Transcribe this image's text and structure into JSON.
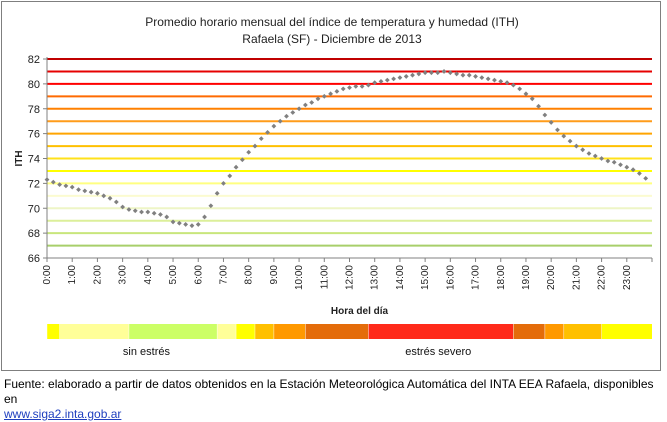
{
  "chart_data": {
    "type": "scatter",
    "title": "Promedio horario mensual del índice de temperatura y humedad (ITH)",
    "subtitle": "Rafaela (SF) - Diciembre de 2013",
    "xlabel": "Hora del día",
    "ylabel": "ITH",
    "ylim": [
      66,
      82
    ],
    "yticks": [
      "66",
      "68",
      "70",
      "72",
      "74",
      "76",
      "78",
      "80",
      "82"
    ],
    "xtick_labels": [
      "0:00",
      "1:00",
      "2:00",
      "3:00",
      "4:00",
      "5:00",
      "6:00",
      "7:00",
      "8:00",
      "9:00",
      "10:00",
      "11:00",
      "12:00",
      "13:00",
      "14:00",
      "15:00",
      "16:00",
      "17:00",
      "18:00",
      "19:00",
      "20:00",
      "21:00",
      "22:00",
      "23:00"
    ],
    "x_range_hours": [
      0,
      24
    ],
    "series_color": "#808080",
    "x": [
      0,
      0.25,
      0.5,
      0.75,
      1,
      1.25,
      1.5,
      1.75,
      2,
      2.25,
      2.5,
      2.75,
      3,
      3.25,
      3.5,
      3.75,
      4,
      4.25,
      4.5,
      4.75,
      5,
      5.25,
      5.5,
      5.75,
      6,
      6.25,
      6.5,
      6.75,
      7,
      7.25,
      7.5,
      7.75,
      8,
      8.25,
      8.5,
      8.75,
      9,
      9.25,
      9.5,
      9.75,
      10,
      10.25,
      10.5,
      10.75,
      11,
      11.25,
      11.5,
      11.75,
      12,
      12.25,
      12.5,
      12.75,
      13,
      13.25,
      13.5,
      13.75,
      14,
      14.25,
      14.5,
      14.75,
      15,
      15.25,
      15.5,
      15.75,
      16,
      16.25,
      16.5,
      16.75,
      17,
      17.25,
      17.5,
      17.75,
      18,
      18.25,
      18.5,
      18.75,
      19,
      19.25,
      19.5,
      19.75,
      20,
      20.25,
      20.5,
      20.75,
      21,
      21.25,
      21.5,
      21.75,
      22,
      22.25,
      22.5,
      22.75,
      23,
      23.25,
      23.5,
      23.75
    ],
    "y": [
      72.3,
      72.1,
      71.9,
      71.8,
      71.7,
      71.5,
      71.4,
      71.3,
      71.2,
      71.0,
      70.8,
      70.5,
      70.1,
      69.9,
      69.8,
      69.7,
      69.7,
      69.6,
      69.5,
      69.3,
      68.9,
      68.8,
      68.7,
      68.6,
      68.7,
      69.3,
      70.2,
      71.2,
      72.0,
      72.6,
      73.3,
      73.9,
      74.5,
      75.0,
      75.6,
      76.1,
      76.6,
      77.0,
      77.4,
      77.7,
      78.0,
      78.3,
      78.5,
      78.8,
      79.0,
      79.2,
      79.4,
      79.6,
      79.7,
      79.8,
      79.8,
      79.9,
      80.1,
      80.2,
      80.3,
      80.4,
      80.5,
      80.6,
      80.7,
      80.8,
      80.9,
      80.9,
      80.9,
      81.0,
      80.9,
      80.8,
      80.7,
      80.7,
      80.6,
      80.5,
      80.4,
      80.3,
      80.2,
      80.1,
      79.9,
      79.6,
      79.2,
      78.8,
      78.2,
      77.5,
      76.9,
      76.3,
      75.8,
      75.4,
      75.0,
      74.7,
      74.4,
      74.2,
      74.0,
      73.8,
      73.7,
      73.5,
      73.3,
      73.1,
      72.8,
      72.4
    ],
    "threshold_lines": [
      {
        "y": 67,
        "color": "#a8cf6a"
      },
      {
        "y": 68,
        "color": "#c8e67c"
      },
      {
        "y": 69,
        "color": "#dcef9a"
      },
      {
        "y": 70,
        "color": "#eef5c6"
      },
      {
        "y": 71,
        "color": "#fbfbd0"
      },
      {
        "y": 72,
        "color": "#ffff80"
      },
      {
        "y": 73,
        "color": "#ffff00"
      },
      {
        "y": 74,
        "color": "#ffe11a"
      },
      {
        "y": 75,
        "color": "#ffc000"
      },
      {
        "y": 76,
        "color": "#ffa400"
      },
      {
        "y": 77,
        "color": "#ff9c1a"
      },
      {
        "y": 78,
        "color": "#ff8000"
      },
      {
        "y": 79,
        "color": "#ff6a00"
      },
      {
        "y": 80,
        "color": "#ff0000"
      },
      {
        "y": 81,
        "color": "#e60000"
      },
      {
        "y": 82,
        "color": "#c00000"
      }
    ],
    "stress_bar": [
      {
        "from": 0,
        "to": 0.5,
        "color": "#ffff00"
      },
      {
        "from": 0.5,
        "to": 3.25,
        "color": "#ffff99"
      },
      {
        "from": 3.25,
        "to": 6.75,
        "color": "#ccff66"
      },
      {
        "from": 6.75,
        "to": 7.5,
        "color": "#ffff99"
      },
      {
        "from": 7.5,
        "to": 8.25,
        "color": "#ffff00"
      },
      {
        "from": 8.25,
        "to": 9.0,
        "color": "#ffc000"
      },
      {
        "from": 9.0,
        "to": 10.25,
        "color": "#ff9900"
      },
      {
        "from": 10.25,
        "to": 12.75,
        "color": "#e46c0a"
      },
      {
        "from": 12.75,
        "to": 18.5,
        "color": "#ff2a1a"
      },
      {
        "from": 18.5,
        "to": 19.75,
        "color": "#e46c0a"
      },
      {
        "from": 19.75,
        "to": 20.5,
        "color": "#ff9900"
      },
      {
        "from": 20.5,
        "to": 22.0,
        "color": "#ffc000"
      },
      {
        "from": 22.0,
        "to": 24.0,
        "color": "#ffff00"
      }
    ],
    "zone_labels": [
      {
        "text": "sin estrés",
        "at_hour": 4.4
      },
      {
        "text": "estrés  severo",
        "at_hour": 15.6
      }
    ]
  },
  "footer": {
    "source_text": "Fuente: elaborado a partir de datos obtenidos en la Estación Meteorológica Automática del INTA EEA Rafaela, disponibles en",
    "link_text": "www.siga2.inta.gob.ar"
  }
}
